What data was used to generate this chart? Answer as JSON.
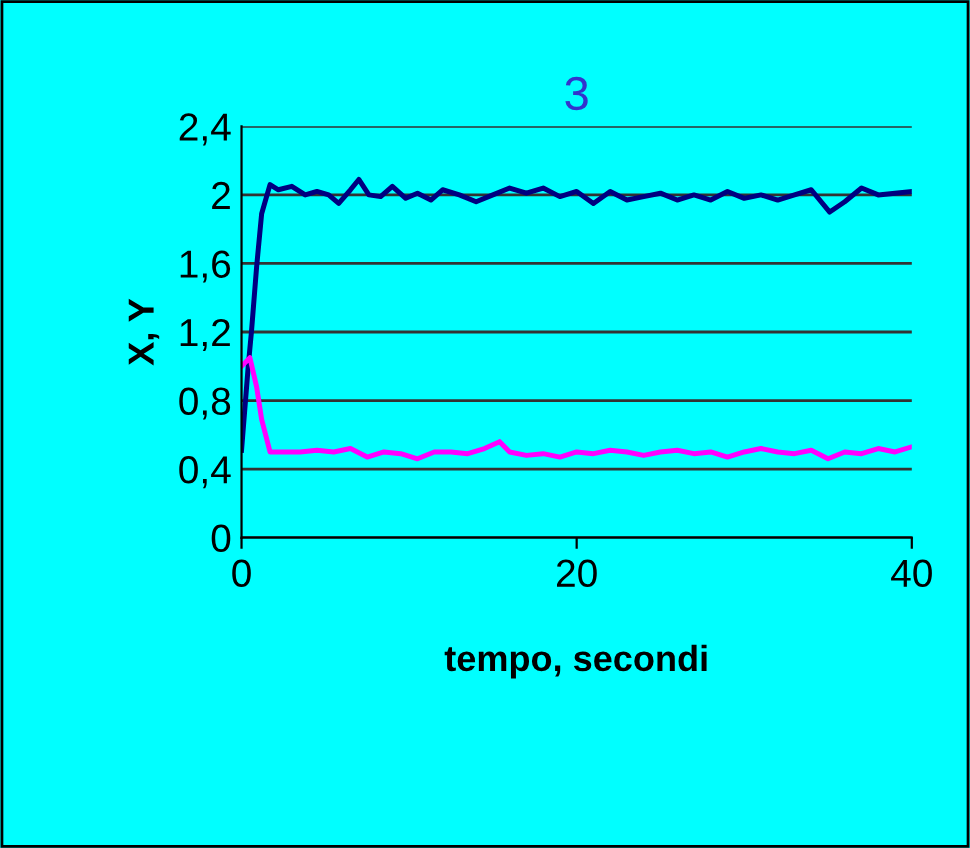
{
  "chart_data": {
    "type": "line",
    "title": "3",
    "xlabel": "tempo, secondi",
    "ylabel": "X, Y",
    "xlim": [
      0,
      40
    ],
    "xticks": [
      0,
      20,
      40
    ],
    "ylim": [
      0,
      2.4
    ],
    "yticks": [
      {
        "value": 0,
        "label": "0"
      },
      {
        "value": 0.4,
        "label": "0,4"
      },
      {
        "value": 0.8,
        "label": "0,8"
      },
      {
        "value": 1.2,
        "label": "1,2"
      },
      {
        "value": 1.6,
        "label": "1,6"
      },
      {
        "value": 2,
        "label": "2"
      },
      {
        "value": 2.4,
        "label": "2,4"
      }
    ],
    "grid": "y",
    "legend": false,
    "marker": "none",
    "line_style": "solid",
    "series": [
      {
        "color": "#000080",
        "x": [
          0,
          0.4,
          0.6,
          0.9,
          1.2,
          1.7,
          2.2,
          3,
          3.8,
          4.5,
          5.2,
          5.8,
          6.5,
          7,
          7.6,
          8.3,
          9,
          9.8,
          10.5,
          11.3,
          12,
          13,
          14,
          15,
          16,
          17,
          18,
          19,
          20,
          21,
          22,
          23,
          24,
          25,
          26,
          27,
          28,
          29,
          30,
          31,
          32,
          33,
          34,
          35.1,
          36,
          37,
          38,
          39,
          40
        ],
        "values": [
          0.51,
          1.0,
          1.21,
          1.58,
          1.89,
          2.06,
          2.03,
          2.05,
          2.0,
          2.02,
          2.0,
          1.95,
          2.03,
          2.09,
          2.0,
          1.99,
          2.05,
          1.98,
          2.01,
          1.97,
          2.03,
          2.0,
          1.96,
          2.0,
          2.04,
          2.01,
          2.04,
          1.99,
          2.02,
          1.95,
          2.02,
          1.97,
          1.99,
          2.01,
          1.97,
          2.0,
          1.97,
          2.02,
          1.98,
          2.0,
          1.97,
          2.0,
          2.03,
          1.9,
          1.96,
          2.04,
          2.0,
          2.01,
          2.02
        ]
      },
      {
        "color": "#ff00ff",
        "x": [
          0,
          0.5,
          0.9,
          1.2,
          1.7,
          2.5,
          3.5,
          4.5,
          5.5,
          6.5,
          7.5,
          8.5,
          9.5,
          10.5,
          11.5,
          12.5,
          13.5,
          14.5,
          15.4,
          16,
          17,
          18,
          19,
          20,
          21,
          22,
          23,
          24,
          25,
          26,
          27,
          28,
          29,
          30,
          31,
          32,
          33,
          34,
          35,
          36,
          37,
          38,
          39,
          40
        ],
        "values": [
          1.0,
          1.05,
          0.88,
          0.69,
          0.5,
          0.5,
          0.5,
          0.51,
          0.5,
          0.52,
          0.47,
          0.5,
          0.49,
          0.46,
          0.5,
          0.5,
          0.49,
          0.52,
          0.56,
          0.5,
          0.48,
          0.49,
          0.47,
          0.5,
          0.49,
          0.51,
          0.5,
          0.48,
          0.5,
          0.51,
          0.49,
          0.5,
          0.47,
          0.5,
          0.52,
          0.5,
          0.49,
          0.51,
          0.46,
          0.5,
          0.49,
          0.52,
          0.5,
          0.53
        ]
      }
    ]
  }
}
